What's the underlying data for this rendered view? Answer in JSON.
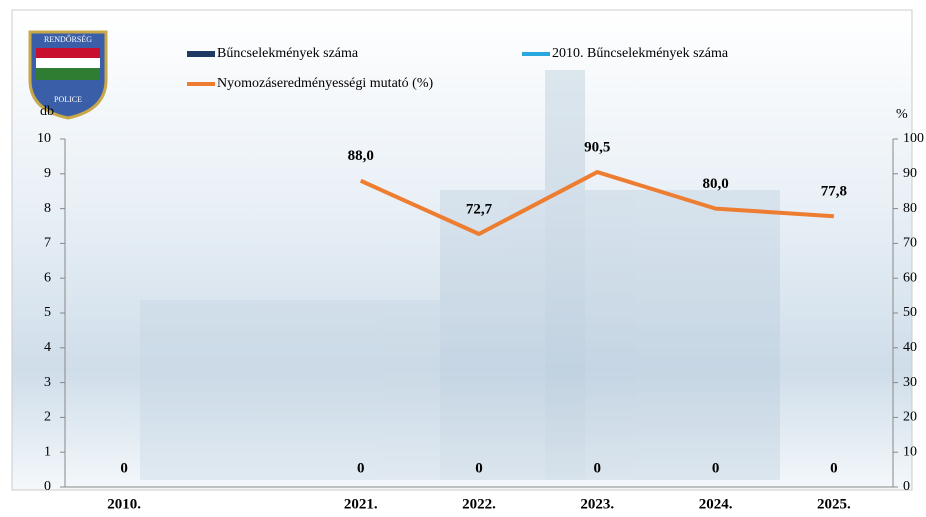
{
  "chart_data": {
    "type": "bar_line",
    "annotations": [
      "RENDŐRSÉG",
      "POLICE"
    ],
    "ylabel": "db",
    "y2label": "%",
    "categories": [
      "2010.",
      null,
      "2021.",
      "2022.",
      "2023.",
      "2024.",
      "2025."
    ],
    "series": [
      {
        "name": "Bűncselekmények száma",
        "type": "bar",
        "color": "#1f3864",
        "values": [
          0,
          null,
          0,
          0,
          0,
          0,
          0
        ]
      },
      {
        "name": "2010. Bűncselekmények száma",
        "type": "line",
        "color": "#29a8e0",
        "values": [
          null,
          null,
          null,
          null,
          null,
          null,
          null
        ]
      },
      {
        "name": "Nyomozáseredményességi mutató (%)",
        "type": "line",
        "axis": "y2",
        "color": "#ed7d31",
        "values": [
          null,
          null,
          88.0,
          72.7,
          90.5,
          80.0,
          77.8
        ],
        "value_labels": [
          null,
          null,
          "88,0",
          "72,7",
          "90,5",
          "80,0",
          "77,8"
        ]
      }
    ],
    "ylim": [
      0,
      10
    ],
    "yticks": [
      0,
      1,
      2,
      3,
      4,
      5,
      6,
      7,
      8,
      9,
      10
    ],
    "y2lim": [
      0,
      100
    ],
    "y2ticks": [
      0,
      10,
      20,
      30,
      40,
      50,
      60,
      70,
      80,
      90,
      100
    ]
  }
}
